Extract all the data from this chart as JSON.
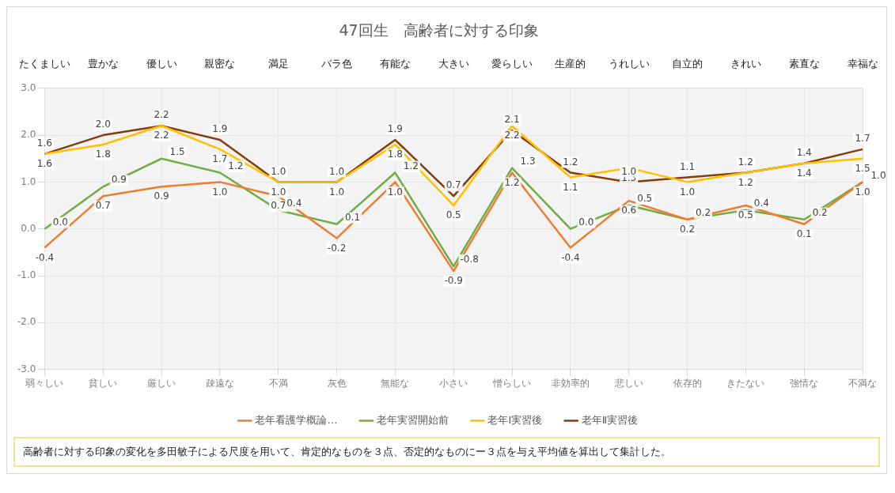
{
  "chart_data": {
    "type": "line",
    "title": "47回生　高齢者に対する印象",
    "categories": [
      "弱々しい",
      "貧しい",
      "厳しい",
      "疎遠な",
      "不満",
      "灰色",
      "無能な",
      "小さい",
      "憎らしい",
      "非効率的",
      "悲しい",
      "依存的",
      "きたない",
      "強情な",
      "不満な"
    ],
    "series": [
      {
        "name": "老年看護学概論…",
        "color": "#ed7d31",
        "values": [
          -0.4,
          0.7,
          0.9,
          1.0,
          0.7,
          -0.2,
          1.0,
          -0.9,
          1.2,
          -0.4,
          0.6,
          0.2,
          0.5,
          0.1,
          1.0
        ],
        "value_labels": [
          "-0.4",
          "0.7",
          "0.9",
          "1.0",
          "0.7",
          "-0.2",
          "1.0",
          "-0.9",
          "1.2",
          "-0.4",
          "0.6",
          "0.2",
          "0.5",
          "0.1",
          "1.0"
        ]
      },
      {
        "name": "老年実習開始前",
        "color": "#70ad47",
        "values": [
          0.0,
          0.9,
          1.5,
          1.2,
          0.4,
          0.1,
          1.2,
          -0.8,
          1.3,
          0.0,
          0.5,
          0.2,
          0.4,
          0.2,
          1.0
        ],
        "value_labels": [
          "0.0",
          "0.9",
          "1.5",
          "1.2",
          "0.4",
          "0.1",
          "1.2",
          "-0.8",
          "1.3",
          "0.0",
          "0.5",
          "0.2",
          "0.4",
          "0.2",
          "1.0"
        ]
      },
      {
        "name": "老年Ⅰ実習後",
        "color": "#ffc000",
        "values": [
          1.6,
          1.8,
          2.2,
          1.7,
          1.0,
          1.0,
          1.8,
          0.5,
          2.2,
          1.1,
          1.3,
          1.0,
          1.2,
          1.4,
          1.5
        ],
        "value_labels": [
          "1.6",
          "1.8",
          "2.2",
          "1.7",
          "1.0",
          "1.0",
          "1.8",
          "0.5",
          "2.2",
          "1.1",
          "1.3",
          "1.0",
          "1.2",
          "1.4",
          "1.5"
        ]
      },
      {
        "name": "老年Ⅱ実習後",
        "color": "#843c0c",
        "values": [
          1.6,
          2.0,
          2.2,
          1.9,
          1.0,
          1.0,
          1.9,
          0.7,
          2.1,
          1.2,
          1.0,
          1.1,
          1.2,
          1.4,
          1.7
        ],
        "value_labels": [
          "1.6",
          "2.0",
          "2.2",
          "1.9",
          "1.0",
          "1.0",
          "1.9",
          "0.7",
          "2.1",
          "1.2",
          "1.0",
          "1.1",
          "1.2",
          "1.4",
          "1.7"
        ]
      }
    ],
    "ylim": [
      -3,
      3
    ],
    "yticks": [
      {
        "value": -3,
        "label": "-3.0"
      },
      {
        "value": -2,
        "label": "-2.0"
      },
      {
        "value": -1,
        "label": "-1.0"
      },
      {
        "value": 0,
        "label": "0.0"
      },
      {
        "value": 1,
        "label": "1.0"
      },
      {
        "value": 2,
        "label": "2.0"
      },
      {
        "value": 3,
        "label": "3.0"
      }
    ],
    "grid": true,
    "legend": "bottom",
    "marker": "none",
    "line_style": "solid",
    "annotations": [
      "たくましい",
      "豊かな",
      "優しい",
      "親密な",
      "満足",
      "バラ色",
      "有能な",
      "大きい",
      "愛らしい",
      "生産的",
      "うれしい",
      "自立的",
      "きれい",
      "素直な",
      "幸福な",
      "高齢者に対する印象の変化を多田敏子による尺度を用いて、肯定的なものを３点、否定的なものにー３点を与え平均値を算出して集計した。"
    ]
  }
}
